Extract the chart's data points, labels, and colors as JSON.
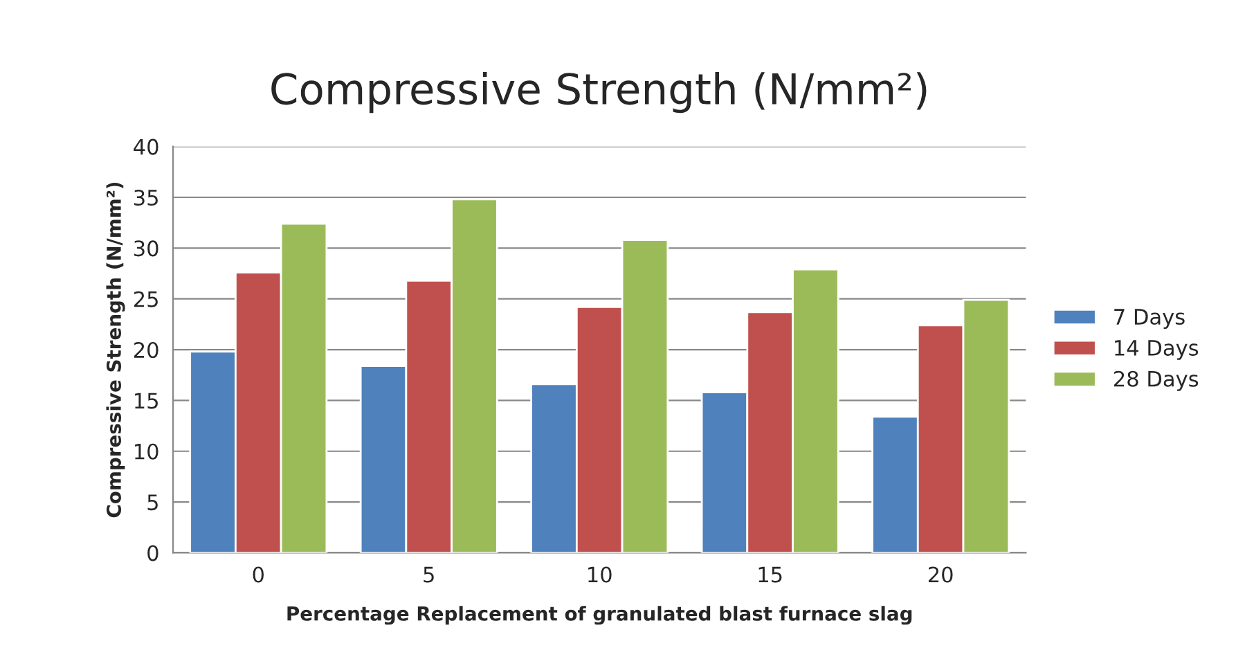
{
  "chart_data": {
    "type": "bar",
    "title": "Compressive Strength (N/mm²)",
    "xlabel": "Percentage Replacement of granulated blast furnace slag",
    "ylabel": "Compressive Strength (N/mm²)",
    "categories": [
      "0",
      "5",
      "10",
      "15",
      "20"
    ],
    "series": [
      {
        "name": "7 Days",
        "color": "#4f81bd",
        "values": [
          19.8,
          18.4,
          16.6,
          15.8,
          13.4
        ]
      },
      {
        "name": "14 Days",
        "color": "#c0504d",
        "values": [
          27.6,
          26.8,
          24.2,
          23.7,
          22.4
        ]
      },
      {
        "name": "28 Days",
        "color": "#9bbb59",
        "values": [
          32.4,
          34.8,
          30.8,
          27.9,
          24.9
        ]
      }
    ],
    "ylim": [
      0,
      40
    ],
    "yticks": [
      0,
      5,
      10,
      15,
      20,
      25,
      30,
      35,
      40
    ],
    "grid": "y",
    "legend": "right"
  }
}
